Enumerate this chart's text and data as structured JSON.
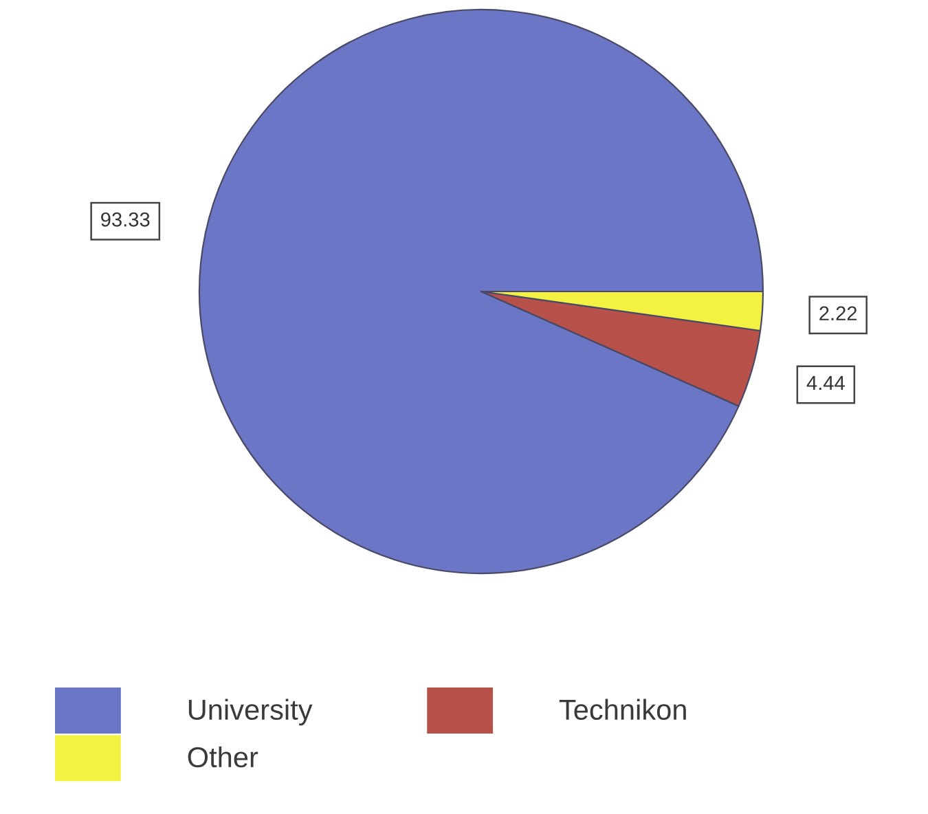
{
  "chart_data": {
    "type": "pie",
    "categories": [
      "University",
      "Technikon",
      "Other"
    ],
    "values": [
      93.33,
      4.44,
      2.22
    ],
    "colors": [
      "#6b76c6",
      "#b9514b",
      "#f3f142"
    ],
    "data_labels": true,
    "legend": "bottom"
  }
}
